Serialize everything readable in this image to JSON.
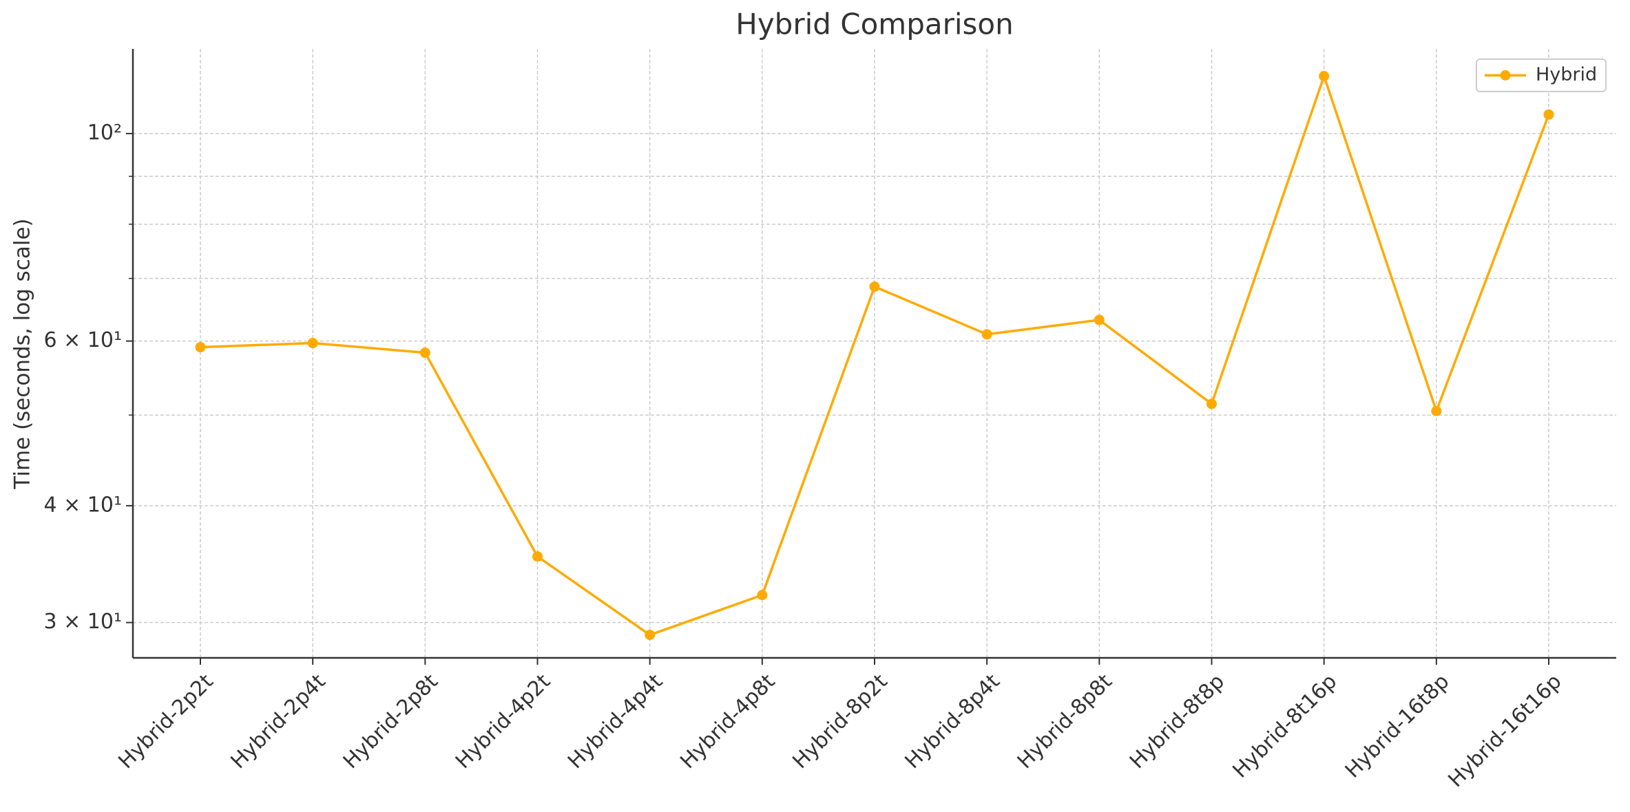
{
  "chart_data": {
    "type": "line",
    "title": "Hybrid Comparison",
    "y_label": "Time (seconds, log scale)",
    "categories": [
      "Hybrid-2p2t",
      "Hybrid-2p4t",
      "Hybrid-2p8t",
      "Hybrid-4p2t",
      "Hybrid-4p4t",
      "Hybrid-4p8t",
      "Hybrid-8p2t",
      "Hybrid-8p4t",
      "Hybrid-8p8t",
      "Hybrid-8t8p",
      "Hybrid-8t16p",
      "Hybrid-16t8p",
      "Hybrid-16t16p"
    ],
    "series": [
      {
        "name": "Hybrid",
        "color": "#ffaa00",
        "values": [
          59.1,
          59.7,
          58.3,
          35.3,
          29.1,
          32.1,
          68.6,
          61.0,
          63.2,
          51.4,
          115.2,
          50.5,
          104.8
        ]
      }
    ],
    "y_scale": "log",
    "ylim": [
      27.5,
      123.2
    ],
    "yticks": [
      {
        "value": 30,
        "label": "3 × 10¹"
      },
      {
        "value": 40,
        "label": "4 × 10¹"
      },
      {
        "value": 60,
        "label": "6 × 10¹"
      },
      {
        "value": 100,
        "label": "10²"
      }
    ],
    "yminor": [
      50,
      70,
      80,
      90
    ],
    "grid": true,
    "legend": "upper right"
  }
}
